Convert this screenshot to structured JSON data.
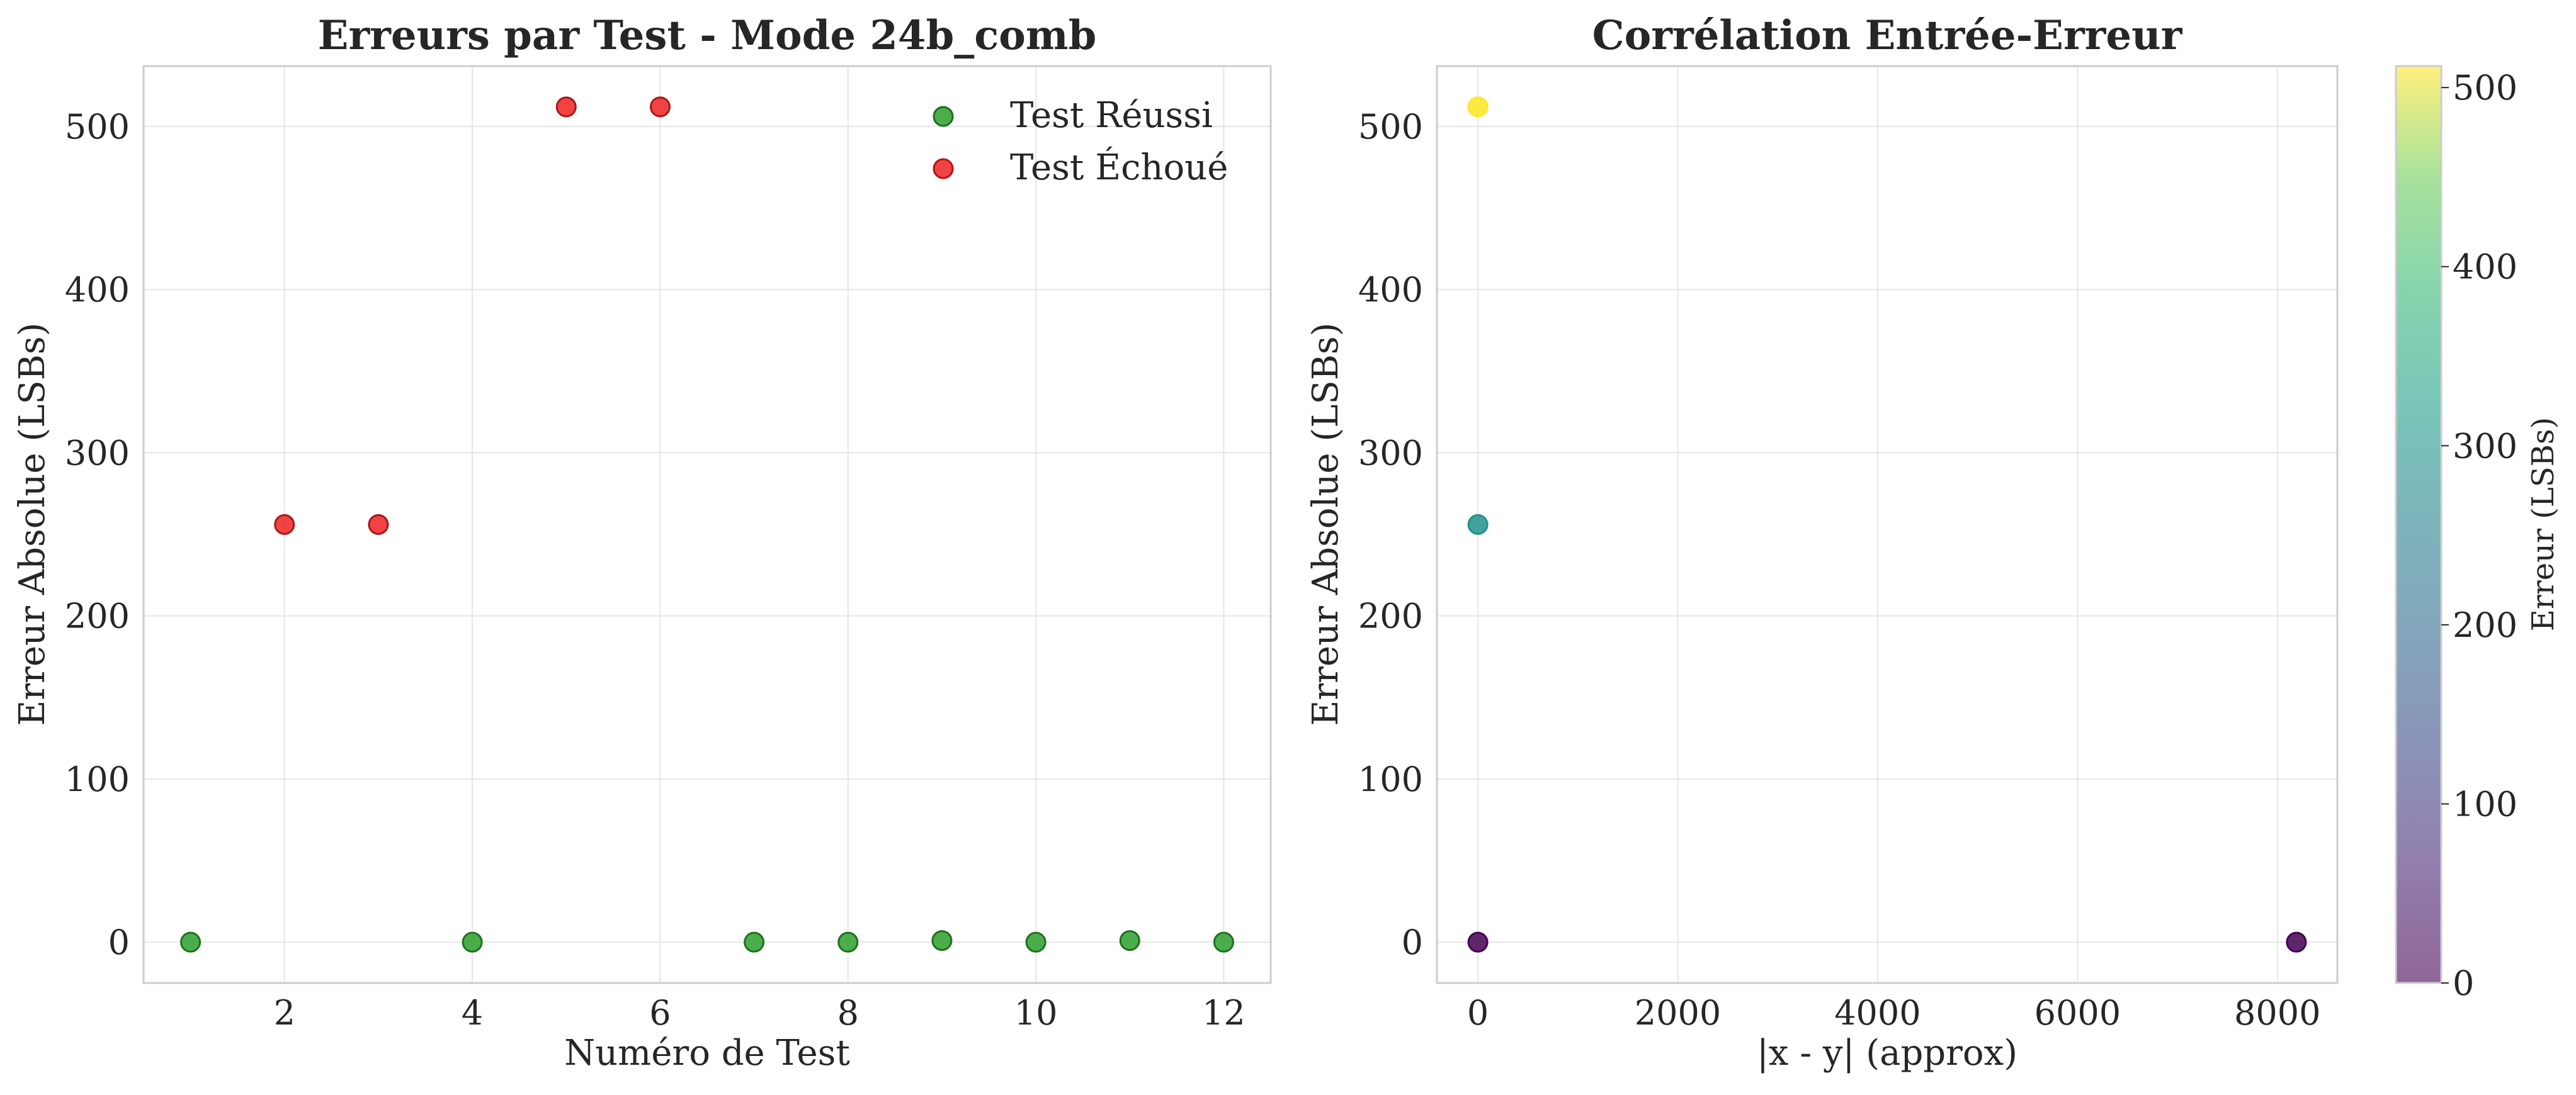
{
  "chart_data": [
    {
      "type": "scatter",
      "title": "Erreurs par Test - Mode 24b_comb",
      "xlabel": "Numéro de Test",
      "ylabel": "Erreur Absolue (LSBs)",
      "xlim": [
        0.5,
        12.5
      ],
      "ylim": [
        -25,
        537
      ],
      "xticks": [
        2,
        4,
        6,
        8,
        10,
        12
      ],
      "yticks": [
        0,
        100,
        200,
        300,
        400,
        500
      ],
      "grid": true,
      "legend_position": "top-right",
      "series": [
        {
          "name": "Test Réussi",
          "color": "#2ca02c",
          "x": [
            1,
            4,
            7,
            8,
            9,
            10,
            11,
            12
          ],
          "y": [
            0,
            0,
            0,
            0,
            1,
            0,
            1,
            0
          ]
        },
        {
          "name": "Test Échoué",
          "color": "#ee2222",
          "x": [
            2,
            3,
            5,
            6
          ],
          "y": [
            256,
            256,
            512,
            512
          ]
        }
      ]
    },
    {
      "type": "scatter",
      "title": "Corrélation Entrée-Erreur",
      "xlabel": "|x - y| (approx)",
      "ylabel": "Erreur Absolue (LSBs)",
      "xlim": [
        -410,
        8600
      ],
      "ylim": [
        -25,
        537
      ],
      "xticks": [
        0,
        2000,
        4000,
        6000,
        8000
      ],
      "yticks": [
        0,
        100,
        200,
        300,
        400,
        500
      ],
      "grid": true,
      "colormap": "viridis",
      "points": [
        {
          "x": 0,
          "y": 512,
          "color": "#fde725"
        },
        {
          "x": 0,
          "y": 256,
          "color": "#21918c"
        },
        {
          "x": 0,
          "y": 0,
          "color": "#440154"
        },
        {
          "x": 8190,
          "y": 0,
          "color": "#440154"
        }
      ],
      "colorbar": {
        "label": "Erreur (LSBs)",
        "range": [
          0,
          512
        ],
        "ticks": [
          0,
          100,
          200,
          300,
          400,
          500
        ]
      }
    }
  ]
}
